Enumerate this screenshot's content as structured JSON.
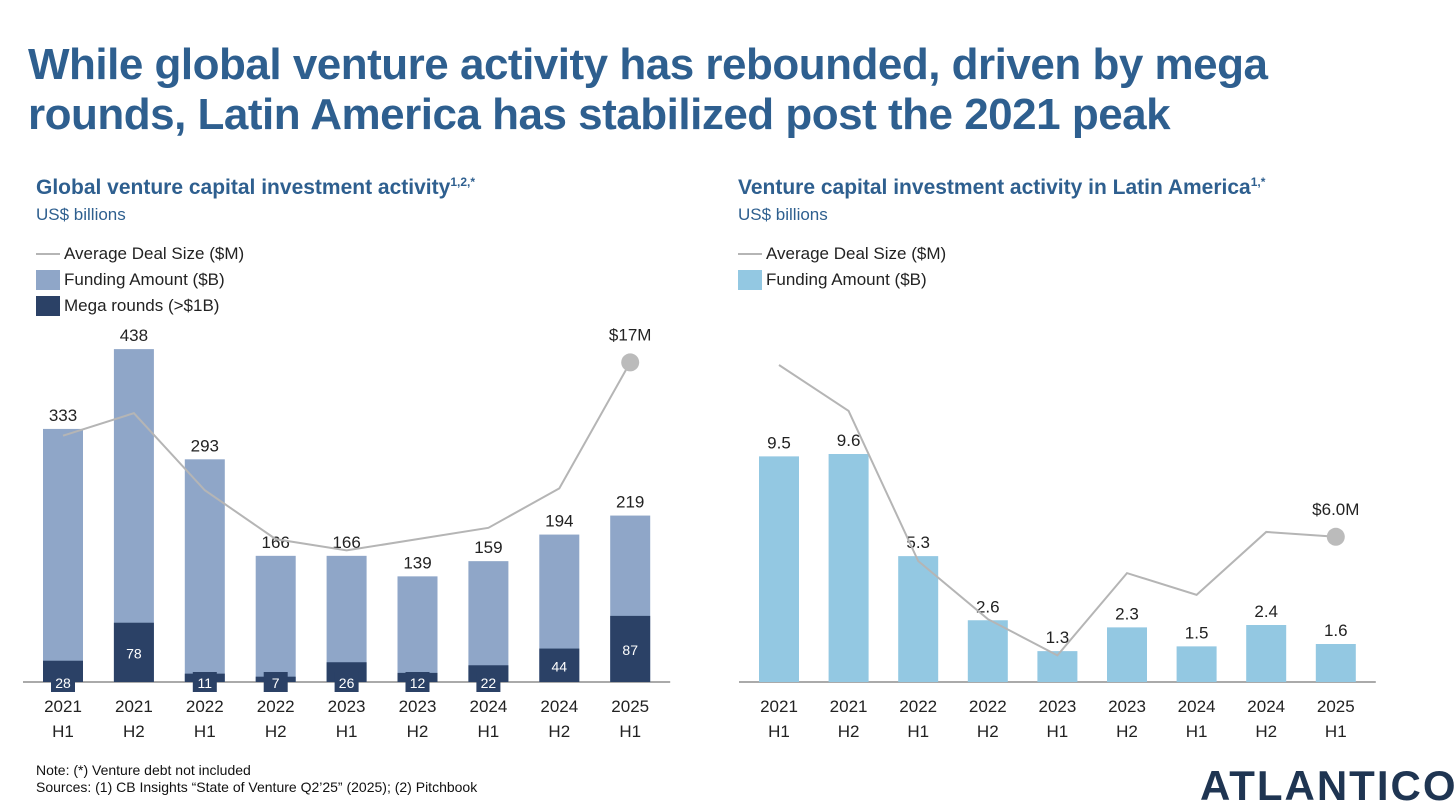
{
  "title": "While global venture activity has rebounded, driven by mega rounds, Latin America has stabilized post the 2021 peak",
  "logo": "ATLANTICO",
  "note": "Note: (*) Venture debt not included",
  "sources": "Sources: (1) CB Insights “State of Venture Q2’25” (2025); (2) Pitchbook",
  "colors": {
    "funding_global": "#8fa6c8",
    "mega": "#2b4166",
    "funding_latam": "#93c8e2",
    "line": "#b5b5b5",
    "title": "#2e5f8f"
  },
  "chart_data": [
    {
      "type": "bar",
      "title": "Global venture capital investment activity",
      "title_sup": "1,2,*",
      "subtitle": "US$ billions",
      "legend": [
        "Average Deal Size ($M)",
        "Funding Amount ($B)",
        "Mega rounds (>$1B)"
      ],
      "categories": [
        [
          "2021",
          "H1"
        ],
        [
          "2021",
          "H2"
        ],
        [
          "2022",
          "H1"
        ],
        [
          "2022",
          "H2"
        ],
        [
          "2023",
          "H1"
        ],
        [
          "2023",
          "H2"
        ],
        [
          "2024",
          "H1"
        ],
        [
          "2024",
          "H2"
        ],
        [
          "2025",
          "H1"
        ]
      ],
      "series": [
        {
          "name": "Funding Amount ($B)",
          "values": [
            333,
            438,
            293,
            166,
            166,
            139,
            159,
            194,
            219
          ]
        },
        {
          "name": "Mega rounds (>$1B)",
          "values": [
            28,
            78,
            11,
            7,
            26,
            12,
            22,
            44,
            87
          ]
        },
        {
          "name": "Average Deal Size ($M)",
          "values": [
            13.1,
            14.3,
            10.2,
            7.6,
            7.0,
            7.6,
            8.2,
            10.3,
            17
          ],
          "end_label": "$17M"
        }
      ]
    },
    {
      "type": "bar",
      "title": "Venture capital investment activity in Latin America",
      "title_sup": "1,*",
      "subtitle": "US$ billions",
      "legend": [
        "Average Deal Size ($M)",
        "Funding Amount ($B)"
      ],
      "categories": [
        [
          "2021",
          "H1"
        ],
        [
          "2021",
          "H2"
        ],
        [
          "2022",
          "H1"
        ],
        [
          "2022",
          "H2"
        ],
        [
          "2023",
          "H1"
        ],
        [
          "2023",
          "H2"
        ],
        [
          "2024",
          "H1"
        ],
        [
          "2024",
          "H2"
        ],
        [
          "2025",
          "H1"
        ]
      ],
      "series": [
        {
          "name": "Funding Amount ($B)",
          "values": [
            9.5,
            9.6,
            5.3,
            2.6,
            1.3,
            2.3,
            1.5,
            2.4,
            1.6
          ]
        },
        {
          "name": "Average Deal Size ($M)",
          "values": [
            13.1,
            11.2,
            5.0,
            2.6,
            1.1,
            4.5,
            3.6,
            6.2,
            6.0
          ],
          "end_label": "$6.0M"
        }
      ]
    }
  ]
}
